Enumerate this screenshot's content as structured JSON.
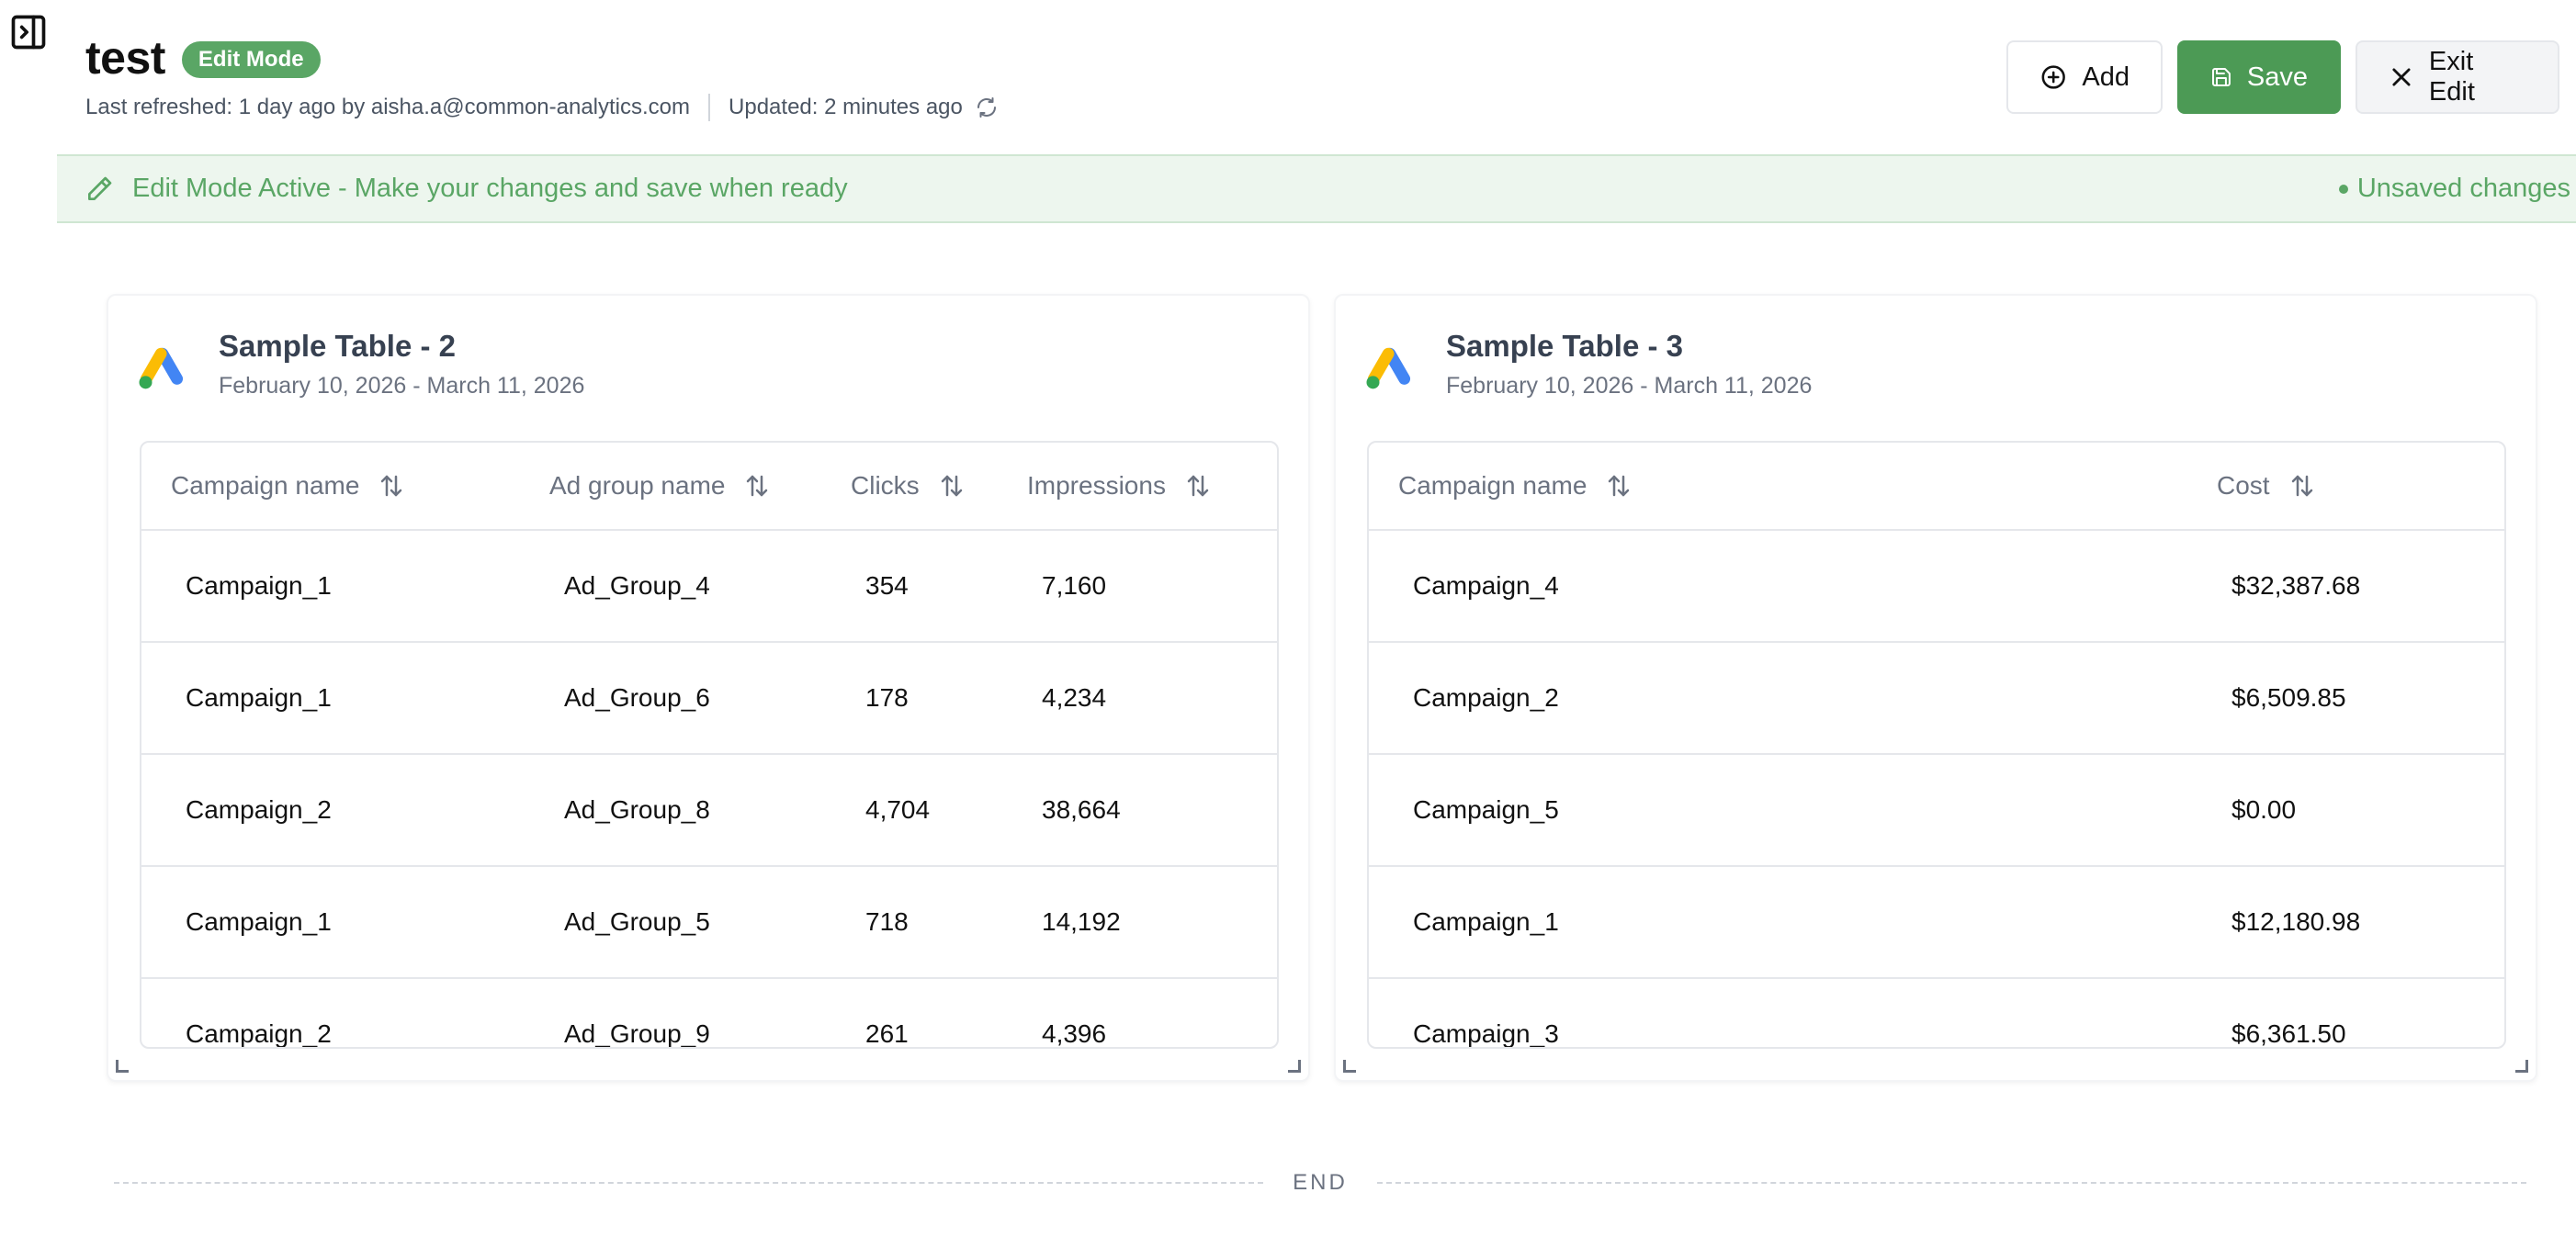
{
  "header": {
    "title": "test",
    "mode_badge": "Edit Mode",
    "last_refreshed": "Last refreshed: 1 day ago by aisha.a@common-analytics.com",
    "updated": "Updated: 2 minutes ago"
  },
  "actions": {
    "add_label": "Add",
    "save_label": "Save",
    "exit_label": "Exit Edit"
  },
  "banner": {
    "message": "Edit Mode Active - Make your changes and save when ready",
    "unsaved": "Unsaved changes"
  },
  "colors": {
    "accent_green": "#4c9a55",
    "badge_green": "#5aa665",
    "banner_bg": "#edf6ee"
  },
  "cards": [
    {
      "title": "Sample Table - 2",
      "date_range": "February 10, 2026 - March 11, 2026",
      "columns": [
        "Campaign name",
        "Ad group name",
        "Clicks",
        "Impressions"
      ],
      "rows": [
        [
          "Campaign_1",
          "Ad_Group_4",
          "354",
          "7,160"
        ],
        [
          "Campaign_1",
          "Ad_Group_6",
          "178",
          "4,234"
        ],
        [
          "Campaign_2",
          "Ad_Group_8",
          "4,704",
          "38,664"
        ],
        [
          "Campaign_1",
          "Ad_Group_5",
          "718",
          "14,192"
        ],
        [
          "Campaign_2",
          "Ad_Group_9",
          "261",
          "4,396"
        ]
      ]
    },
    {
      "title": "Sample Table - 3",
      "date_range": "February 10, 2026 - March 11, 2026",
      "columns": [
        "Campaign name",
        "Cost"
      ],
      "rows": [
        [
          "Campaign_4",
          "$32,387.68"
        ],
        [
          "Campaign_2",
          "$6,509.85"
        ],
        [
          "Campaign_5",
          "$0.00"
        ],
        [
          "Campaign_1",
          "$12,180.98"
        ],
        [
          "Campaign_3",
          "$6,361.50"
        ]
      ]
    }
  ],
  "footer": {
    "end_label": "END"
  }
}
